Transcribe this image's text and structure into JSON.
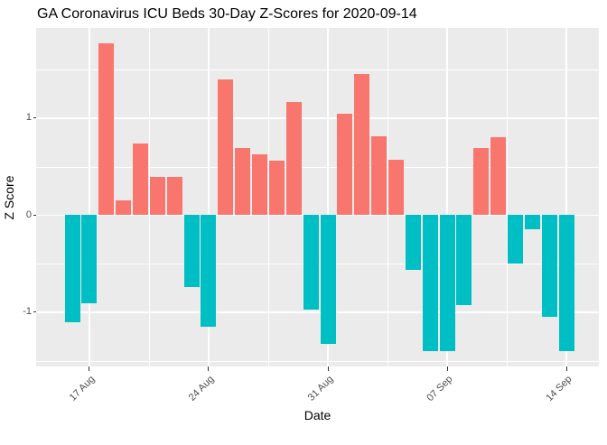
{
  "title": "GA Coronavirus ICU Beds 30-Day Z-Scores for 2020-09-14",
  "chart_data": {
    "type": "bar",
    "title": "GA Coronavirus ICU Beds 30-Day Z-Scores for 2020-09-14",
    "xlabel": "Date",
    "ylabel": "Z Score",
    "x": [
      "2020-08-16",
      "2020-08-17",
      "2020-08-18",
      "2020-08-19",
      "2020-08-20",
      "2020-08-21",
      "2020-08-22",
      "2020-08-23",
      "2020-08-24",
      "2020-08-25",
      "2020-08-26",
      "2020-08-27",
      "2020-08-28",
      "2020-08-29",
      "2020-08-30",
      "2020-08-31",
      "2020-09-01",
      "2020-09-02",
      "2020-09-03",
      "2020-09-04",
      "2020-09-05",
      "2020-09-06",
      "2020-09-07",
      "2020-09-08",
      "2020-09-09",
      "2020-09-10",
      "2020-09-11",
      "2020-09-12",
      "2020-09-13",
      "2020-09-14"
    ],
    "values": [
      -1.1,
      -0.91,
      1.77,
      0.15,
      0.74,
      0.39,
      0.39,
      -0.74,
      -1.15,
      1.4,
      0.69,
      0.63,
      0.56,
      1.17,
      -0.97,
      -1.33,
      1.05,
      1.46,
      0.81,
      0.57,
      -0.56,
      -1.4,
      -1.4,
      -0.93,
      0.69,
      0.8,
      -0.5,
      -0.15,
      -1.05,
      -1.4
    ],
    "ylim": [
      -1.56,
      1.93
    ],
    "y_ticks": [
      {
        "value": 1,
        "label": "1"
      },
      {
        "value": 0,
        "label": "0"
      },
      {
        "value": -1,
        "label": "-1"
      }
    ],
    "y_minor_ticks": [
      1.5,
      0.5,
      -0.5,
      -1.5
    ],
    "x_ticks": [
      {
        "index": 1,
        "label": "17 Aug"
      },
      {
        "index": 8,
        "label": "24 Aug"
      },
      {
        "index": 15,
        "label": "31 Aug"
      },
      {
        "index": 22,
        "label": "07 Sep"
      },
      {
        "index": 29,
        "label": "14 Sep"
      }
    ],
    "x_minor_indices": [
      4.5,
      11.5,
      18.5,
      25.5
    ],
    "positive_color": "#F8766D",
    "negative_color": "#00BFC4",
    "panel_bg": "#EBEBEB",
    "grid_color": "#FFFFFF",
    "legend": "none",
    "grid": "on"
  }
}
